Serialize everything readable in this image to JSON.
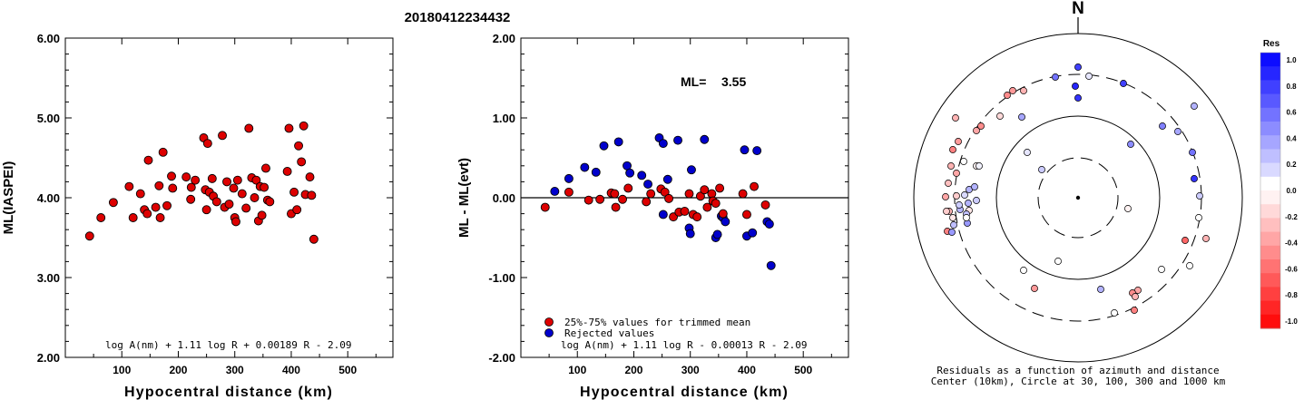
{
  "event_id": "20180412234432",
  "chart_data": [
    {
      "type": "scatter",
      "ylabel": "ML(IASPEI)",
      "xlabel": "Hypocentral distance (km)",
      "xlim": [
        0,
        580
      ],
      "ylim": [
        2.0,
        6.0
      ],
      "xticks": [
        "100",
        "200",
        "300",
        "400",
        "500"
      ],
      "yticks": [
        "2.00",
        "3.00",
        "4.00",
        "5.00",
        "6.00"
      ],
      "formula": "log A(nm) + 1.11 log R + 0.00189 R - 2.09",
      "marker_color": "#dd0000",
      "points": [
        [
          43,
          3.52
        ],
        [
          63,
          3.75
        ],
        [
          85,
          3.94
        ],
        [
          113,
          4.14
        ],
        [
          120,
          3.75
        ],
        [
          133,
          4.05
        ],
        [
          140,
          3.85
        ],
        [
          145,
          3.8
        ],
        [
          147,
          4.47
        ],
        [
          160,
          3.88
        ],
        [
          166,
          4.15
        ],
        [
          168,
          3.75
        ],
        [
          173,
          4.57
        ],
        [
          180,
          3.9
        ],
        [
          188,
          4.27
        ],
        [
          190,
          4.12
        ],
        [
          214,
          4.26
        ],
        [
          222,
          3.98
        ],
        [
          223,
          4.13
        ],
        [
          230,
          4.22
        ],
        [
          245,
          4.75
        ],
        [
          248,
          4.1
        ],
        [
          250,
          3.85
        ],
        [
          252,
          4.68
        ],
        [
          255,
          4.07
        ],
        [
          260,
          4.24
        ],
        [
          262,
          4.02
        ],
        [
          268,
          3.95
        ],
        [
          278,
          4.78
        ],
        [
          282,
          3.88
        ],
        [
          286,
          4.2
        ],
        [
          290,
          3.92
        ],
        [
          298,
          4.12
        ],
        [
          300,
          3.75
        ],
        [
          302,
          3.7
        ],
        [
          305,
          4.22
        ],
        [
          313,
          4.05
        ],
        [
          320,
          3.87
        ],
        [
          325,
          4.87
        ],
        [
          330,
          4.25
        ],
        [
          335,
          4.0
        ],
        [
          338,
          4.22
        ],
        [
          342,
          3.71
        ],
        [
          345,
          4.14
        ],
        [
          348,
          3.78
        ],
        [
          352,
          4.13
        ],
        [
          355,
          4.37
        ],
        [
          358,
          3.97
        ],
        [
          362,
          3.95
        ],
        [
          393,
          4.33
        ],
        [
          396,
          4.87
        ],
        [
          400,
          3.8
        ],
        [
          405,
          4.07
        ],
        [
          410,
          3.85
        ],
        [
          413,
          4.65
        ],
        [
          418,
          4.45
        ],
        [
          422,
          4.9
        ],
        [
          425,
          4.04
        ],
        [
          433,
          4.26
        ],
        [
          436,
          4.03
        ],
        [
          440,
          3.48
        ]
      ]
    },
    {
      "type": "scatter",
      "ylabel": "ML - ML(evt)",
      "xlabel": "Hypocentral distance (km)",
      "xlim": [
        0,
        580
      ],
      "ylim": [
        -2.0,
        2.0
      ],
      "xticks": [
        "100",
        "200",
        "300",
        "400",
        "500"
      ],
      "yticks": [
        "-2.00",
        "-1.00",
        "0.00",
        "1.00",
        "2.00"
      ],
      "ml_label": "ML=",
      "ml_value": "3.55",
      "formula": "log A(nm) + 1.11 log R - 0.00013 R - 2.09",
      "legend": [
        "25%-75% values for trimmed mean",
        "Rejected values"
      ],
      "colors": {
        "kept": "#dd0000",
        "rejected": "#0000cc"
      },
      "kept": [
        [
          43,
          -0.12
        ],
        [
          85,
          0.07
        ],
        [
          120,
          -0.03
        ],
        [
          140,
          -0.02
        ],
        [
          160,
          0.06
        ],
        [
          166,
          0.05
        ],
        [
          168,
          -0.12
        ],
        [
          180,
          -0.02
        ],
        [
          190,
          0.12
        ],
        [
          222,
          -0.05
        ],
        [
          230,
          0.05
        ],
        [
          248,
          0.11
        ],
        [
          255,
          0.07
        ],
        [
          262,
          -0.01
        ],
        [
          270,
          -0.24
        ],
        [
          280,
          -0.18
        ],
        [
          290,
          -0.17
        ],
        [
          298,
          0.05
        ],
        [
          305,
          -0.21
        ],
        [
          312,
          -0.24
        ],
        [
          318,
          0.02
        ],
        [
          325,
          0.1
        ],
        [
          330,
          -0.12
        ],
        [
          338,
          0.05
        ],
        [
          340,
          -0.04
        ],
        [
          345,
          -0.07
        ],
        [
          352,
          0.12
        ],
        [
          358,
          -0.2
        ],
        [
          393,
          0.05
        ],
        [
          400,
          -0.21
        ],
        [
          413,
          0.14
        ],
        [
          433,
          -0.09
        ]
      ],
      "rejected": [
        [
          60,
          0.08
        ],
        [
          85,
          0.24
        ],
        [
          113,
          0.38
        ],
        [
          133,
          0.32
        ],
        [
          147,
          0.65
        ],
        [
          173,
          0.7
        ],
        [
          188,
          0.4
        ],
        [
          193,
          0.31
        ],
        [
          214,
          0.28
        ],
        [
          225,
          0.17
        ],
        [
          245,
          0.75
        ],
        [
          252,
          0.68
        ],
        [
          252,
          -0.21
        ],
        [
          260,
          0.23
        ],
        [
          278,
          0.72
        ],
        [
          298,
          -0.38
        ],
        [
          300,
          -0.45
        ],
        [
          302,
          0.35
        ],
        [
          325,
          0.73
        ],
        [
          345,
          -0.5
        ],
        [
          348,
          -0.46
        ],
        [
          355,
          -0.23
        ],
        [
          358,
          -0.25
        ],
        [
          362,
          -0.3
        ],
        [
          396,
          0.6
        ],
        [
          400,
          -0.48
        ],
        [
          410,
          -0.44
        ],
        [
          418,
          0.59
        ],
        [
          436,
          -0.3
        ],
        [
          440,
          -0.33
        ],
        [
          443,
          -0.85
        ]
      ]
    },
    {
      "type": "polar",
      "north_label": "N",
      "caption": [
        "Residuals as a function of azimuth and distance",
        "Center (10km), Circle at 30, 100, 300 and 1000 km"
      ],
      "colorbar_title": "Res",
      "colorbar_ticks": [
        "1.0",
        "0.8",
        "0.6",
        "0.4",
        "0.2",
        "0.0",
        "-0.2",
        "-0.4",
        "-0.6",
        "-0.8",
        "-1.0"
      ],
      "points": [
        [
          -25,
          -133,
          0.55
        ],
        [
          0,
          -144,
          0.75
        ],
        [
          12,
          -134,
          0.1
        ],
        [
          50,
          -126,
          0.75
        ],
        [
          -62,
          -89,
          0.35
        ],
        [
          -60,
          -118,
          -0.3
        ],
        [
          -72,
          -118,
          -0.4
        ],
        [
          -78,
          -113,
          -0.45
        ],
        [
          -86,
          -90,
          -0.15
        ],
        [
          0,
          -110,
          0.8
        ],
        [
          -3,
          -123,
          0.85
        ],
        [
          -107,
          -79,
          -0.45
        ],
        [
          -112,
          -74,
          -0.35
        ],
        [
          -135,
          -88,
          -0.3
        ],
        [
          -132,
          -62,
          -0.4
        ],
        [
          -138,
          -53,
          -0.5
        ],
        [
          -134,
          -27,
          -0.35
        ],
        [
          -140,
          -35,
          -0.3
        ],
        [
          -143,
          -16,
          -0.25
        ],
        [
          -146,
          -1,
          -0.35
        ],
        [
          -142,
          15,
          -0.3
        ],
        [
          -134,
          -2,
          -0.2
        ],
        [
          -130,
          13,
          0.3
        ],
        [
          -138,
          22,
          -0.1
        ],
        [
          -145,
          15,
          -0.2
        ],
        [
          -137,
          30,
          0.25
        ],
        [
          -144,
          37,
          -0.5
        ],
        [
          -139,
          38,
          0.4
        ],
        [
          -120,
          -9,
          0.3
        ],
        [
          -114,
          -12,
          0.3
        ],
        [
          -112,
          3,
          0.2
        ],
        [
          -121,
          6,
          0.3
        ],
        [
          -122,
          28,
          0.4
        ],
        [
          -131,
          8,
          0.2
        ],
        [
          -120,
          14,
          -0.1
        ],
        [
          -125,
          -3,
          0.15
        ],
        [
          -126,
          -40,
          0
        ],
        [
          -123,
          18,
          0.25
        ],
        [
          -123,
          22,
          0
        ],
        [
          -112,
          -35,
          -0.05
        ],
        [
          -109,
          -35,
          0.05
        ],
        [
          -56,
          -50,
          0.1
        ],
        [
          -40,
          -31,
          0.2
        ],
        [
          58,
          -59,
          0.45
        ],
        [
          93,
          -79,
          0.5
        ],
        [
          110,
          -73,
          0.35
        ],
        [
          128,
          -101,
          0.3
        ],
        [
          126,
          -50,
          0.55
        ],
        [
          128,
          -21,
          0.8
        ],
        [
          134,
          -2,
          0.2
        ],
        [
          133,
          22,
          0
        ],
        [
          141,
          45,
          -0.3
        ],
        [
          118,
          47,
          -0.6
        ],
        [
          123,
          75,
          0
        ],
        [
          92,
          79,
          0
        ],
        [
          66,
          102,
          -0.35
        ],
        [
          60,
          105,
          -0.45
        ],
        [
          63,
          109,
          -0.3
        ],
        [
          62,
          124,
          -0.5
        ],
        [
          40,
          127,
          0
        ],
        [
          25,
          101,
          0.3
        ],
        [
          -22,
          70,
          0
        ],
        [
          -48,
          100,
          -0.4
        ],
        [
          -60,
          80,
          0
        ],
        [
          55,
          12,
          -0.05
        ]
      ]
    }
  ]
}
